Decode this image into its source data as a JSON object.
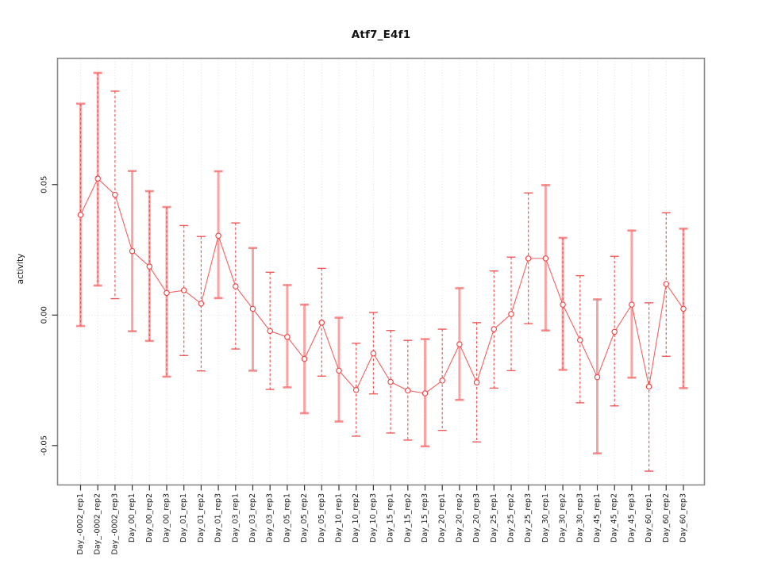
{
  "chart_data": {
    "type": "line",
    "title": "Atf7_E4f1",
    "ylabel": "activity",
    "xlabel": "",
    "legend_position": "none",
    "grid": "dotted-vertical-per-category-and-zero-line",
    "ylim": [
      -0.0651,
      0.0984
    ],
    "yticks": [
      {
        "value": -0.05,
        "label": "-0.05"
      },
      {
        "value": 0.0,
        "label": "0.00"
      },
      {
        "value": 0.05,
        "label": "0.05"
      }
    ],
    "colors": {
      "series": "#f04545",
      "errorbar_pale": "#f77070",
      "errorbar_dashed": "#ee4b4b",
      "grid": "#dcdcdc",
      "frame": "#898989",
      "tick": "#333333",
      "text": "#1a1a1a"
    },
    "points": [
      {
        "label": "Day_-0002_rep1",
        "value": 0.0384,
        "lo": -0.0042,
        "hi": 0.081,
        "style": "both"
      },
      {
        "label": "Day_-0002_rep2",
        "value": 0.0523,
        "lo": 0.0113,
        "hi": 0.0928,
        "style": "both"
      },
      {
        "label": "Day_-0002_rep3",
        "value": 0.0461,
        "lo": 0.0063,
        "hi": 0.0858,
        "style": "dashed"
      },
      {
        "label": "Day_00_rep1",
        "value": 0.0245,
        "lo": -0.0062,
        "hi": 0.0552,
        "style": "pale"
      },
      {
        "label": "Day_00_rep2",
        "value": 0.0186,
        "lo": -0.0099,
        "hi": 0.0475,
        "style": "both"
      },
      {
        "label": "Day_00_rep3",
        "value": 0.0085,
        "lo": -0.0236,
        "hi": 0.0414,
        "style": "both"
      },
      {
        "label": "Day_01_rep1",
        "value": 0.0095,
        "lo": -0.0155,
        "hi": 0.0343,
        "style": "dashed"
      },
      {
        "label": "Day_01_rep2",
        "value": 0.0044,
        "lo": -0.0214,
        "hi": 0.0301,
        "style": "dashed"
      },
      {
        "label": "Day_01_rep3",
        "value": 0.0304,
        "lo": 0.0065,
        "hi": 0.0551,
        "style": "pale"
      },
      {
        "label": "Day_03_rep1",
        "value": 0.011,
        "lo": -0.013,
        "hi": 0.0353,
        "style": "dashed"
      },
      {
        "label": "Day_03_rep2",
        "value": 0.0024,
        "lo": -0.0213,
        "hi": 0.0257,
        "style": "pale"
      },
      {
        "label": "Day_03_rep3",
        "value": -0.0061,
        "lo": -0.0285,
        "hi": 0.0164,
        "style": "dashed"
      },
      {
        "label": "Day_05_rep1",
        "value": -0.0084,
        "lo": -0.0277,
        "hi": 0.0115,
        "style": "pale"
      },
      {
        "label": "Day_05_rep2",
        "value": -0.0168,
        "lo": -0.0376,
        "hi": 0.004,
        "style": "pale"
      },
      {
        "label": "Day_05_rep3",
        "value": -0.0029,
        "lo": -0.0234,
        "hi": 0.0179,
        "style": "dashed"
      },
      {
        "label": "Day_10_rep1",
        "value": -0.0213,
        "lo": -0.0408,
        "hi": -0.001,
        "style": "pale"
      },
      {
        "label": "Day_10_rep2",
        "value": -0.0287,
        "lo": -0.0464,
        "hi": -0.0108,
        "style": "dashed"
      },
      {
        "label": "Day_10_rep3",
        "value": -0.0147,
        "lo": -0.0302,
        "hi": 0.001,
        "style": "dashed"
      },
      {
        "label": "Day_15_rep1",
        "value": -0.0256,
        "lo": -0.0452,
        "hi": -0.0059,
        "style": "dashed"
      },
      {
        "label": "Day_15_rep2",
        "value": -0.0289,
        "lo": -0.0479,
        "hi": -0.0097,
        "style": "dashed"
      },
      {
        "label": "Day_15_rep3",
        "value": -0.03,
        "lo": -0.0503,
        "hi": -0.0092,
        "style": "pale"
      },
      {
        "label": "Day_20_rep1",
        "value": -0.0251,
        "lo": -0.0442,
        "hi": -0.0054,
        "style": "dashed"
      },
      {
        "label": "Day_20_rep2",
        "value": -0.0112,
        "lo": -0.0325,
        "hi": 0.0103,
        "style": "pale"
      },
      {
        "label": "Day_20_rep3",
        "value": -0.0258,
        "lo": -0.0486,
        "hi": -0.0029,
        "style": "dashed"
      },
      {
        "label": "Day_25_rep1",
        "value": -0.0054,
        "lo": -0.028,
        "hi": 0.0169,
        "style": "dashed"
      },
      {
        "label": "Day_25_rep2",
        "value": 0.0004,
        "lo": -0.0213,
        "hi": 0.0222,
        "style": "dashed"
      },
      {
        "label": "Day_25_rep3",
        "value": 0.0217,
        "lo": -0.0033,
        "hi": 0.0468,
        "style": "dashed"
      },
      {
        "label": "Day_30_rep1",
        "value": 0.0217,
        "lo": -0.0059,
        "hi": 0.0498,
        "style": "pale"
      },
      {
        "label": "Day_30_rep2",
        "value": 0.004,
        "lo": -0.021,
        "hi": 0.0296,
        "style": "both"
      },
      {
        "label": "Day_30_rep3",
        "value": -0.0096,
        "lo": -0.0336,
        "hi": 0.0151,
        "style": "dashed"
      },
      {
        "label": "Day_45_rep1",
        "value": -0.0238,
        "lo": -0.053,
        "hi": 0.006,
        "style": "pale"
      },
      {
        "label": "Day_45_rep2",
        "value": -0.0064,
        "lo": -0.0348,
        "hi": 0.0225,
        "style": "dashed"
      },
      {
        "label": "Day_45_rep3",
        "value": 0.004,
        "lo": -0.024,
        "hi": 0.0324,
        "style": "pale"
      },
      {
        "label": "Day_60_rep1",
        "value": -0.0274,
        "lo": -0.0598,
        "hi": 0.0047,
        "style": "dashed"
      },
      {
        "label": "Day_60_rep2",
        "value": 0.0119,
        "lo": -0.0158,
        "hi": 0.0392,
        "style": "dashed"
      },
      {
        "label": "Day_60_rep3",
        "value": 0.0024,
        "lo": -0.028,
        "hi": 0.0331,
        "style": "both"
      }
    ]
  }
}
